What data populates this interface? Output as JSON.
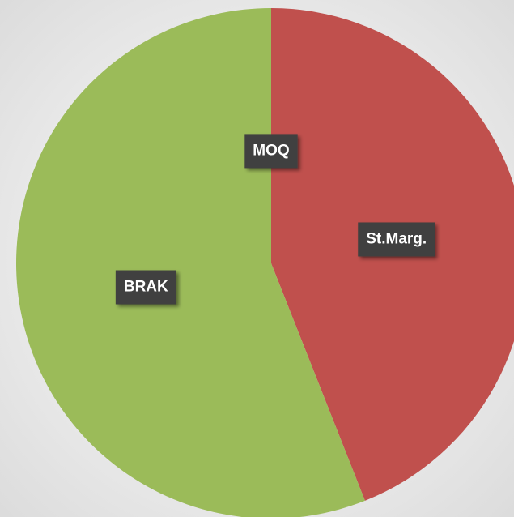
{
  "chart_data": {
    "type": "pie",
    "categories": [
      "MOQ",
      "St.Marg.",
      "BRAK"
    ],
    "values": [
      0,
      44,
      56
    ],
    "colors": [
      "#4f81bd",
      "#c0504d",
      "#9bbb59"
    ]
  }
}
